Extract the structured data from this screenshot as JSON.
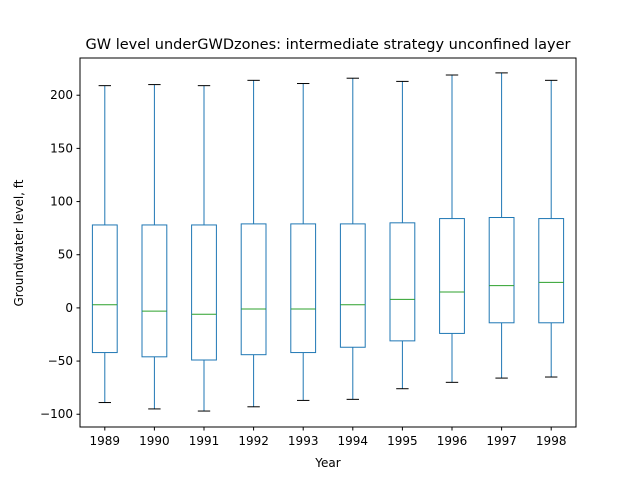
{
  "chart_data": {
    "type": "boxplot",
    "title": "GW level underGWDzones: intermediate strategy unconfined layer",
    "xlabel": "Year",
    "ylabel": "Groundwater level, ft",
    "ylim": [
      -112,
      235
    ],
    "yticks": [
      -100,
      -50,
      0,
      50,
      100,
      150,
      200
    ],
    "ytick_labels": [
      "−100",
      "−50",
      "0",
      "50",
      "100",
      "150",
      "200"
    ],
    "grid": false,
    "categories": [
      "1989",
      "1990",
      "1991",
      "1992",
      "1993",
      "1994",
      "1995",
      "1996",
      "1997",
      "1998"
    ],
    "boxes": [
      {
        "whisker_low": -89,
        "q1": -42,
        "median": 3,
        "q3": 78,
        "whisker_high": 209
      },
      {
        "whisker_low": -95,
        "q1": -46,
        "median": -3,
        "q3": 78,
        "whisker_high": 210
      },
      {
        "whisker_low": -97,
        "q1": -49,
        "median": -6,
        "q3": 78,
        "whisker_high": 209
      },
      {
        "whisker_low": -93,
        "q1": -44,
        "median": -1,
        "q3": 79,
        "whisker_high": 214
      },
      {
        "whisker_low": -87,
        "q1": -42,
        "median": -1,
        "q3": 79,
        "whisker_high": 211
      },
      {
        "whisker_low": -86,
        "q1": -37,
        "median": 3,
        "q3": 79,
        "whisker_high": 216
      },
      {
        "whisker_low": -76,
        "q1": -31,
        "median": 8,
        "q3": 80,
        "whisker_high": 213
      },
      {
        "whisker_low": -70,
        "q1": -24,
        "median": 15,
        "q3": 84,
        "whisker_high": 219
      },
      {
        "whisker_low": -66,
        "q1": -14,
        "median": 21,
        "q3": 85,
        "whisker_high": 221
      },
      {
        "whisker_low": -65,
        "q1": -14,
        "median": 24,
        "q3": 84,
        "whisker_high": 214
      }
    ],
    "colors": {
      "box": "#1f77b4",
      "median": "#2ca02c",
      "cap": "#000000",
      "axis": "#000000"
    }
  }
}
